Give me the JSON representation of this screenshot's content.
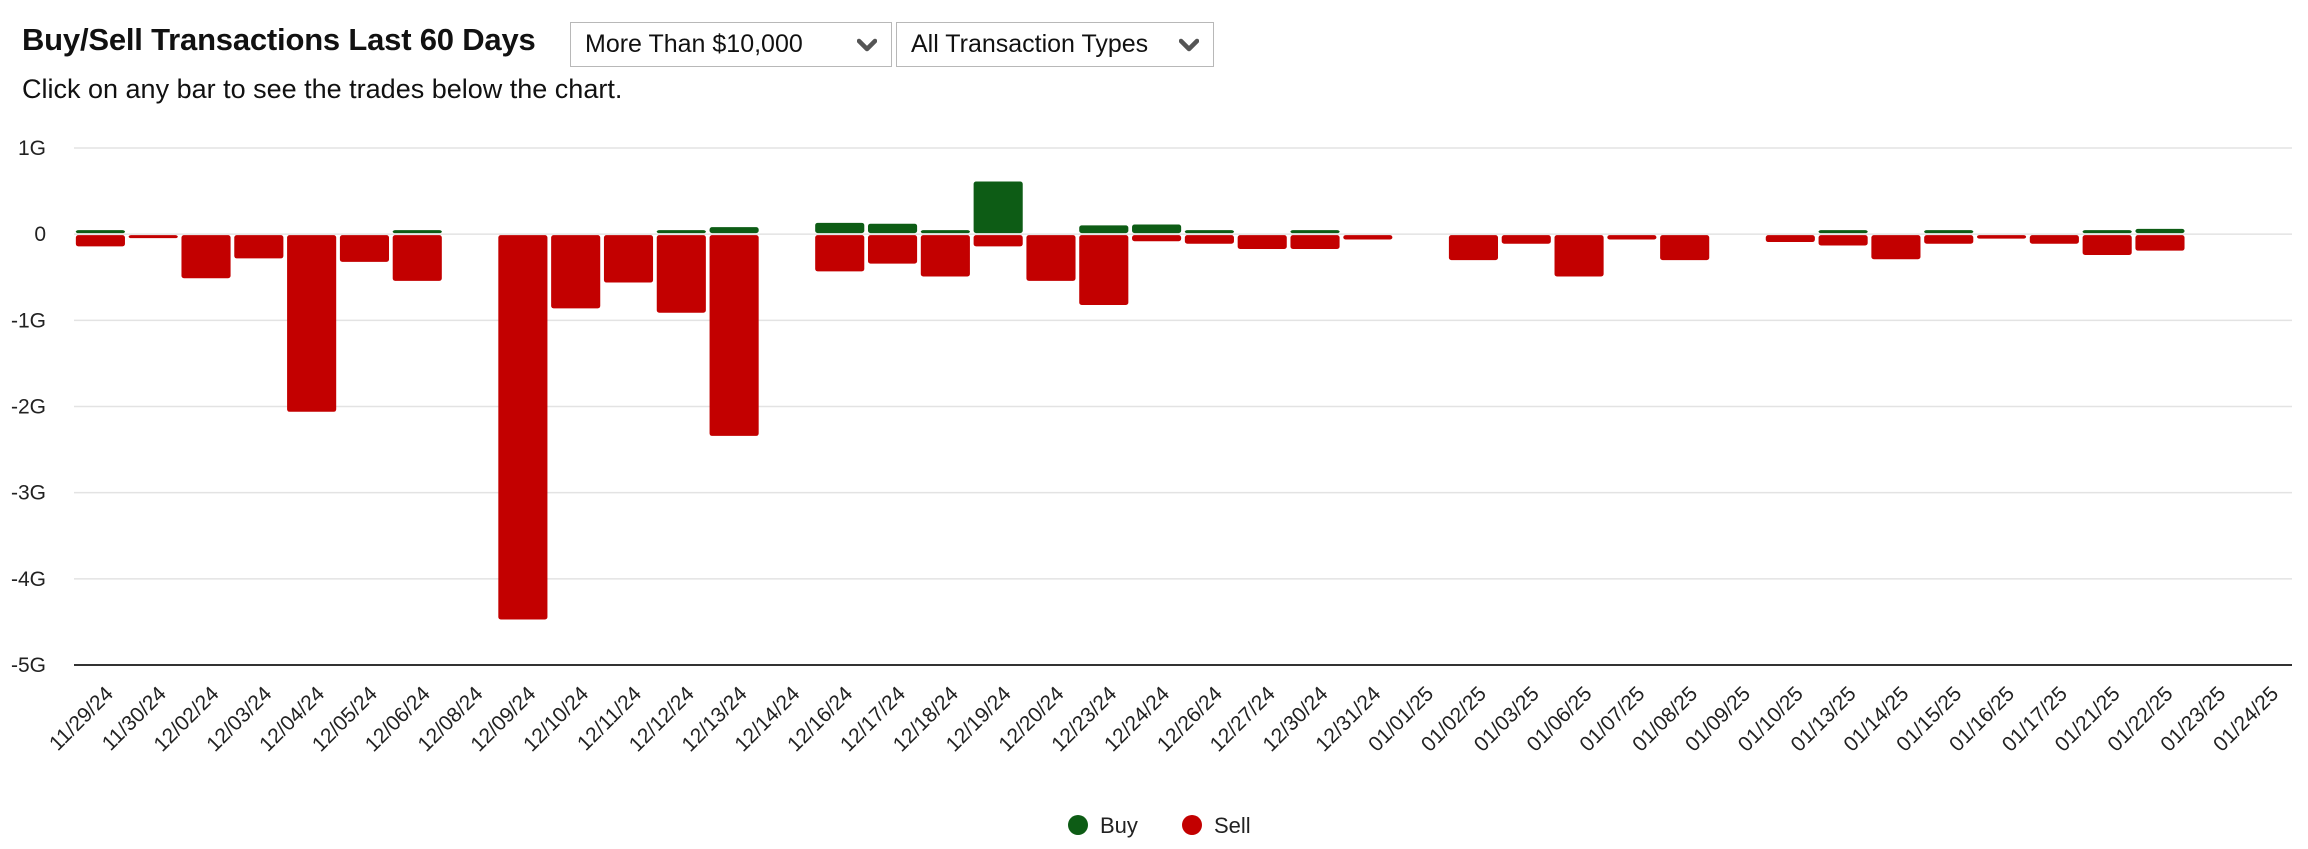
{
  "header": {
    "title": "Buy/Sell Transactions Last 60 Days",
    "subtitle": "Click on any bar to see the trades below the chart."
  },
  "filters": {
    "amount": {
      "selected": "More Than $10,000"
    },
    "type": {
      "selected": "All Transaction Types"
    }
  },
  "colors": {
    "buy": "#0d5c15",
    "sell": "#c30000",
    "grid": "#e3e3e3",
    "axis": "#333333"
  },
  "chart_data": {
    "type": "bar",
    "title": "Buy/Sell Transactions Last 60 Days",
    "ylim": [
      -5,
      1
    ],
    "yticks": [
      1,
      0,
      -1,
      -2,
      -3,
      -4,
      -5
    ],
    "ytick_labels": [
      "1G",
      "0",
      "-1G",
      "-2G",
      "-3G",
      "-4G",
      "-5G"
    ],
    "units": "G",
    "categories": [
      "11/29/24",
      "11/30/24",
      "12/02/24",
      "12/03/24",
      "12/04/24",
      "12/05/24",
      "12/06/24",
      "12/08/24",
      "12/09/24",
      "12/10/24",
      "12/11/24",
      "12/12/24",
      "12/13/24",
      "12/14/24",
      "12/16/24",
      "12/17/24",
      "12/18/24",
      "12/19/24",
      "12/20/24",
      "12/23/24",
      "12/24/24",
      "12/26/24",
      "12/27/24",
      "12/30/24",
      "12/31/24",
      "01/01/25",
      "01/02/25",
      "01/03/25",
      "01/06/25",
      "01/07/25",
      "01/08/25",
      "01/09/25",
      "01/10/25",
      "01/13/25",
      "01/14/25",
      "01/15/25",
      "01/16/25",
      "01/17/25",
      "01/21/25",
      "01/22/25",
      "01/23/25",
      "01/24/25"
    ],
    "series": [
      {
        "name": "Buy",
        "values": [
          0.02,
          0,
          0,
          0,
          0,
          0,
          0.02,
          0,
          0,
          0,
          0,
          0.02,
          0.07,
          0,
          0.12,
          0.11,
          0.02,
          0.6,
          0,
          0.09,
          0.1,
          0.02,
          0,
          0.02,
          0,
          0,
          0,
          0,
          0,
          0,
          0,
          0,
          0,
          0.02,
          0,
          0.02,
          0,
          0,
          0.02,
          0.05,
          0,
          0
        ]
      },
      {
        "name": "Sell",
        "values": [
          -0.13,
          -0.02,
          -0.5,
          -0.27,
          -2.05,
          -0.31,
          -0.53,
          0,
          -4.46,
          -0.85,
          -0.55,
          -0.9,
          -2.33,
          0,
          -0.42,
          -0.33,
          -0.48,
          -0.13,
          -0.53,
          -0.81,
          -0.07,
          -0.1,
          -0.16,
          -0.16,
          -0.05,
          0,
          -0.29,
          -0.1,
          -0.48,
          -0.05,
          -0.29,
          0,
          -0.08,
          -0.12,
          -0.28,
          -0.1,
          -0.04,
          -0.1,
          -0.23,
          -0.18,
          0,
          0
        ]
      }
    ],
    "legend": [
      "Buy",
      "Sell"
    ],
    "legend_position": "bottom-center",
    "grid": true
  }
}
